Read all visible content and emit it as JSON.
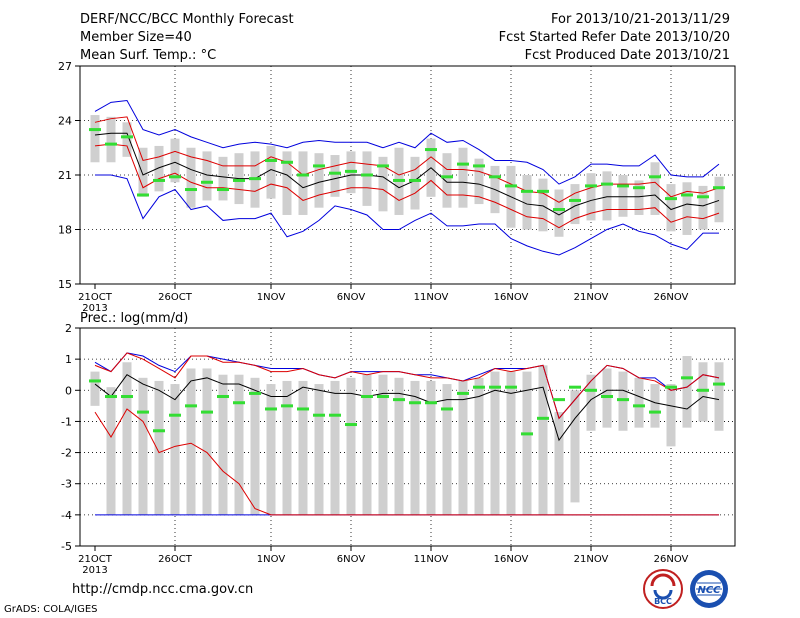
{
  "header": {
    "title": "DERF/NCC/BCC Monthly Forecast",
    "member_size": "Member Size=40",
    "variable": "Mean Surf. Temp.: °C",
    "forecast_period": "For 2013/10/21-2013/11/29",
    "started_refer_date": "Fcst Started Refer Date 2013/10/20",
    "produced_date": "Fcst Produced Date 2013/10/21"
  },
  "footer": {
    "url": "http://cmdp.ncc.cma.gov.cn",
    "credit": "GrADS: COLA/IGES",
    "logo_left_label": "BCC",
    "logo_right_label": "NCC"
  },
  "colors": {
    "box": "#cfcfcf",
    "mean": "#000000",
    "std": "#dd0000",
    "extreme": "#0000dd",
    "observed": "#33dd33"
  },
  "chart_data": [
    {
      "type": "box-line",
      "title": "Mean Surf. Temp.: °C",
      "ylim": [
        15,
        27
      ],
      "yticks": [
        15,
        18,
        21,
        24,
        27
      ],
      "grid": true,
      "x_start_date": "2013-10-21",
      "n_days": 40,
      "xtick_labels": [
        {
          "day": 0,
          "label": "21OCT",
          "sub": "2013"
        },
        {
          "day": 5,
          "label": "26OCT"
        },
        {
          "day": 11,
          "label": "1NOV"
        },
        {
          "day": 16,
          "label": "6NOV"
        },
        {
          "day": 21,
          "label": "11NOV"
        },
        {
          "day": 26,
          "label": "16NOV"
        },
        {
          "day": 31,
          "label": "21NOV"
        },
        {
          "day": 36,
          "label": "26NOV"
        }
      ],
      "series": {
        "mean": [
          23.2,
          23.3,
          23.3,
          21.0,
          21.4,
          21.7,
          21.3,
          21.0,
          20.9,
          20.8,
          20.8,
          21.3,
          21.0,
          20.3,
          20.6,
          20.8,
          21.0,
          21.0,
          20.9,
          20.3,
          20.7,
          21.4,
          20.6,
          20.6,
          20.5,
          20.2,
          19.8,
          19.4,
          19.3,
          18.8,
          19.3,
          19.6,
          19.8,
          19.8,
          19.8,
          19.9,
          19.1,
          19.4,
          19.3,
          19.6
        ],
        "upper_std": [
          23.9,
          24.1,
          24.2,
          21.8,
          22.0,
          22.3,
          22.0,
          21.8,
          21.5,
          21.5,
          21.5,
          22.0,
          21.7,
          21.0,
          21.3,
          21.5,
          21.7,
          21.6,
          21.5,
          21.0,
          21.3,
          22.0,
          21.3,
          21.3,
          21.2,
          20.9,
          20.5,
          20.1,
          20.0,
          19.5,
          20.0,
          20.3,
          20.5,
          20.5,
          20.5,
          20.6,
          19.8,
          20.1,
          20.0,
          20.3
        ],
        "lower_std": [
          22.6,
          22.7,
          22.6,
          20.3,
          20.8,
          21.1,
          20.6,
          20.3,
          20.3,
          20.2,
          20.1,
          20.5,
          20.3,
          19.6,
          19.9,
          20.1,
          20.3,
          20.3,
          20.2,
          19.6,
          20.0,
          20.7,
          19.9,
          19.9,
          19.8,
          19.5,
          19.1,
          18.7,
          18.6,
          18.1,
          18.6,
          18.9,
          19.1,
          19.1,
          19.1,
          19.2,
          18.4,
          18.7,
          18.6,
          18.9
        ],
        "max": [
          24.5,
          25.0,
          25.1,
          23.5,
          23.2,
          23.5,
          23.1,
          22.8,
          22.5,
          22.7,
          22.8,
          22.7,
          22.5,
          22.8,
          22.9,
          22.8,
          22.8,
          22.8,
          22.5,
          22.8,
          22.5,
          23.3,
          22.8,
          22.9,
          22.4,
          21.8,
          21.8,
          21.7,
          21.3,
          20.5,
          20.9,
          21.6,
          21.6,
          21.5,
          21.5,
          22.1,
          21.0,
          20.9,
          20.9,
          21.6
        ],
        "min": [
          21.0,
          21.0,
          20.8,
          18.6,
          19.8,
          20.2,
          19.1,
          19.3,
          18.5,
          18.6,
          18.6,
          18.9,
          17.6,
          17.9,
          18.5,
          19.3,
          19.1,
          18.8,
          18.0,
          18.0,
          18.5,
          18.9,
          18.2,
          18.2,
          18.3,
          18.3,
          17.5,
          17.1,
          16.8,
          16.6,
          17.0,
          17.5,
          18.0,
          18.3,
          17.9,
          17.7,
          17.2,
          16.9,
          17.8,
          17.8
        ],
        "box_high": [
          24.3,
          24.2,
          23.9,
          22.5,
          22.6,
          23.0,
          22.5,
          22.3,
          22.0,
          22.2,
          22.3,
          22.6,
          22.3,
          22.3,
          22.2,
          22.1,
          22.3,
          22.3,
          22.0,
          22.5,
          22.0,
          23.0,
          22.2,
          22.5,
          21.9,
          21.5,
          21.5,
          21.0,
          20.8,
          20.2,
          20.5,
          21.1,
          21.2,
          21.0,
          20.7,
          21.7,
          20.5,
          20.6,
          20.4,
          20.9
        ],
        "box_low": [
          21.7,
          21.7,
          22.0,
          19.8,
          20.1,
          20.6,
          19.2,
          19.6,
          19.6,
          19.4,
          19.2,
          19.7,
          18.8,
          18.8,
          19.2,
          19.8,
          20.0,
          19.3,
          19.0,
          18.8,
          19.1,
          19.8,
          19.2,
          19.2,
          19.4,
          18.9,
          18.1,
          18.0,
          17.9,
          17.6,
          18.3,
          18.5,
          18.5,
          18.7,
          18.8,
          18.8,
          17.9,
          17.7,
          18.0,
          18.4
        ],
        "observed": [
          23.5,
          22.7,
          23.1,
          19.9,
          20.7,
          20.9,
          20.2,
          20.6,
          20.2,
          20.7,
          20.8,
          21.8,
          21.7,
          21.0,
          21.5,
          21.1,
          21.2,
          21.0,
          21.5,
          20.7,
          20.7,
          22.4,
          20.9,
          21.6,
          21.5,
          20.9,
          20.4,
          20.1,
          20.1,
          19.1,
          19.6,
          20.4,
          20.5,
          20.4,
          20.3,
          20.9,
          19.7,
          19.9,
          19.8,
          20.3
        ]
      }
    },
    {
      "type": "box-line",
      "title": "Prec.: log(mm/d)",
      "ylim": [
        -5,
        2
      ],
      "yticks": [
        -5,
        -4,
        -3,
        -2,
        -1,
        0,
        1,
        2
      ],
      "grid": true,
      "x_start_date": "2013-10-21",
      "n_days": 40,
      "xtick_labels": [
        {
          "day": 0,
          "label": "21OCT",
          "sub": "2013"
        },
        {
          "day": 5,
          "label": "26OCT"
        },
        {
          "day": 11,
          "label": "1NOV"
        },
        {
          "day": 16,
          "label": "6NOV"
        },
        {
          "day": 21,
          "label": "11NOV"
        },
        {
          "day": 26,
          "label": "16NOV"
        },
        {
          "day": 31,
          "label": "21NOV"
        },
        {
          "day": 36,
          "label": "26NOV"
        }
      ],
      "series": {
        "mean": [
          0.2,
          -0.2,
          0.5,
          0.2,
          0.0,
          -0.3,
          0.3,
          0.4,
          0.2,
          0.2,
          0.0,
          -0.2,
          -0.2,
          0.1,
          0.0,
          -0.1,
          -0.1,
          -0.2,
          -0.1,
          -0.1,
          -0.2,
          -0.4,
          -0.3,
          -0.3,
          -0.2,
          0.0,
          -0.1,
          0.0,
          0.1,
          -1.6,
          -0.9,
          -0.3,
          0.0,
          0.0,
          -0.2,
          -0.4,
          -0.5,
          -0.6,
          -0.2,
          -0.3
        ],
        "upper_std": [
          0.8,
          0.6,
          1.2,
          1.0,
          0.7,
          0.4,
          1.1,
          1.1,
          0.9,
          0.9,
          0.8,
          0.6,
          0.6,
          0.7,
          0.5,
          0.4,
          0.6,
          0.5,
          0.6,
          0.6,
          0.5,
          0.4,
          0.4,
          0.3,
          0.4,
          0.7,
          0.6,
          0.7,
          0.8,
          -0.9,
          -0.3,
          0.3,
          0.8,
          0.7,
          0.4,
          0.3,
          0.0,
          0.1,
          0.5,
          0.4
        ],
        "lower_std": [
          -0.7,
          -1.5,
          -0.6,
          -1.0,
          -2.0,
          -1.8,
          -1.7,
          -2.0,
          -2.6,
          -3.0,
          -3.8,
          -4.0,
          -4.0,
          -4.0,
          -4.0,
          -4.0,
          -4.0,
          -4.0,
          -4.0,
          -4.0,
          -4.0,
          -4.0,
          -4.0,
          -4.0,
          -4.0,
          -4.0,
          -4.0,
          -4.0,
          -4.0,
          -4.0,
          -4.0,
          -4.0,
          -4.0,
          -4.0,
          -4.0,
          -4.0,
          -4.0,
          -4.0,
          -4.0,
          -4.0
        ],
        "max": [
          0.9,
          0.6,
          1.2,
          1.1,
          0.8,
          0.6,
          1.1,
          1.1,
          1.0,
          0.9,
          0.8,
          0.7,
          0.7,
          0.7,
          0.5,
          0.4,
          0.6,
          0.6,
          0.6,
          0.6,
          0.5,
          0.5,
          0.4,
          0.3,
          0.5,
          0.7,
          0.7,
          0.7,
          0.8,
          -0.9,
          -0.3,
          0.3,
          0.8,
          0.7,
          0.4,
          0.4,
          0.0,
          0.1,
          0.5,
          0.4
        ],
        "min": [
          -4.0,
          -4.0,
          -4.0,
          -4.0,
          -4.0,
          -4.0,
          -4.0,
          -4.0,
          -4.0,
          -4.0,
          -4.0,
          -4.0,
          -4.0,
          -4.0,
          -4.0,
          -4.0,
          -4.0,
          -4.0,
          -4.0,
          -4.0,
          -4.0,
          -4.0,
          -4.0,
          -4.0,
          -4.0,
          -4.0,
          -4.0,
          -4.0,
          -4.0,
          -4.0,
          -4.0,
          -4.0,
          -4.0,
          -4.0,
          -4.0,
          -4.0,
          -4.0,
          -4.0,
          -4.0,
          -4.0
        ],
        "box_high": [
          0.6,
          0.1,
          0.9,
          0.4,
          0.3,
          0.2,
          0.7,
          0.7,
          0.5,
          0.5,
          0.4,
          0.2,
          0.3,
          0.3,
          0.2,
          0.3,
          0.4,
          0.5,
          0.5,
          0.4,
          0.3,
          0.3,
          0.2,
          0.3,
          0.4,
          0.6,
          0.6,
          0.6,
          0.8,
          -0.7,
          0.0,
          0.5,
          0.7,
          0.6,
          0.4,
          0.2,
          0.2,
          1.1,
          0.9,
          0.9
        ],
        "box_low": [
          -0.5,
          -4.0,
          -4.0,
          -4.0,
          -4.0,
          -4.0,
          -4.0,
          -4.0,
          -4.0,
          -4.0,
          -4.0,
          -4.0,
          -4.0,
          -4.0,
          -4.0,
          -4.0,
          -4.0,
          -4.0,
          -4.0,
          -4.0,
          -4.0,
          -4.0,
          -4.0,
          -4.0,
          -4.0,
          -4.0,
          -4.0,
          -4.0,
          -4.0,
          -4.0,
          -3.6,
          -1.3,
          -1.2,
          -1.3,
          -1.2,
          -1.2,
          -1.8,
          -1.2,
          -1.0,
          -1.3
        ],
        "observed": [
          0.3,
          -0.2,
          -0.2,
          -0.7,
          -1.3,
          -0.8,
          -0.5,
          -0.7,
          -0.2,
          -0.4,
          -0.1,
          -0.6,
          -0.5,
          -0.6,
          -0.8,
          -0.8,
          -1.1,
          -0.2,
          -0.2,
          -0.3,
          -0.4,
          -0.4,
          -0.6,
          -0.1,
          0.1,
          0.1,
          0.1,
          -1.4,
          -0.9,
          -0.3,
          0.1,
          0.0,
          -0.2,
          -0.3,
          -0.5,
          -0.7,
          0.1,
          0.4,
          0.0,
          0.2
        ]
      }
    }
  ]
}
